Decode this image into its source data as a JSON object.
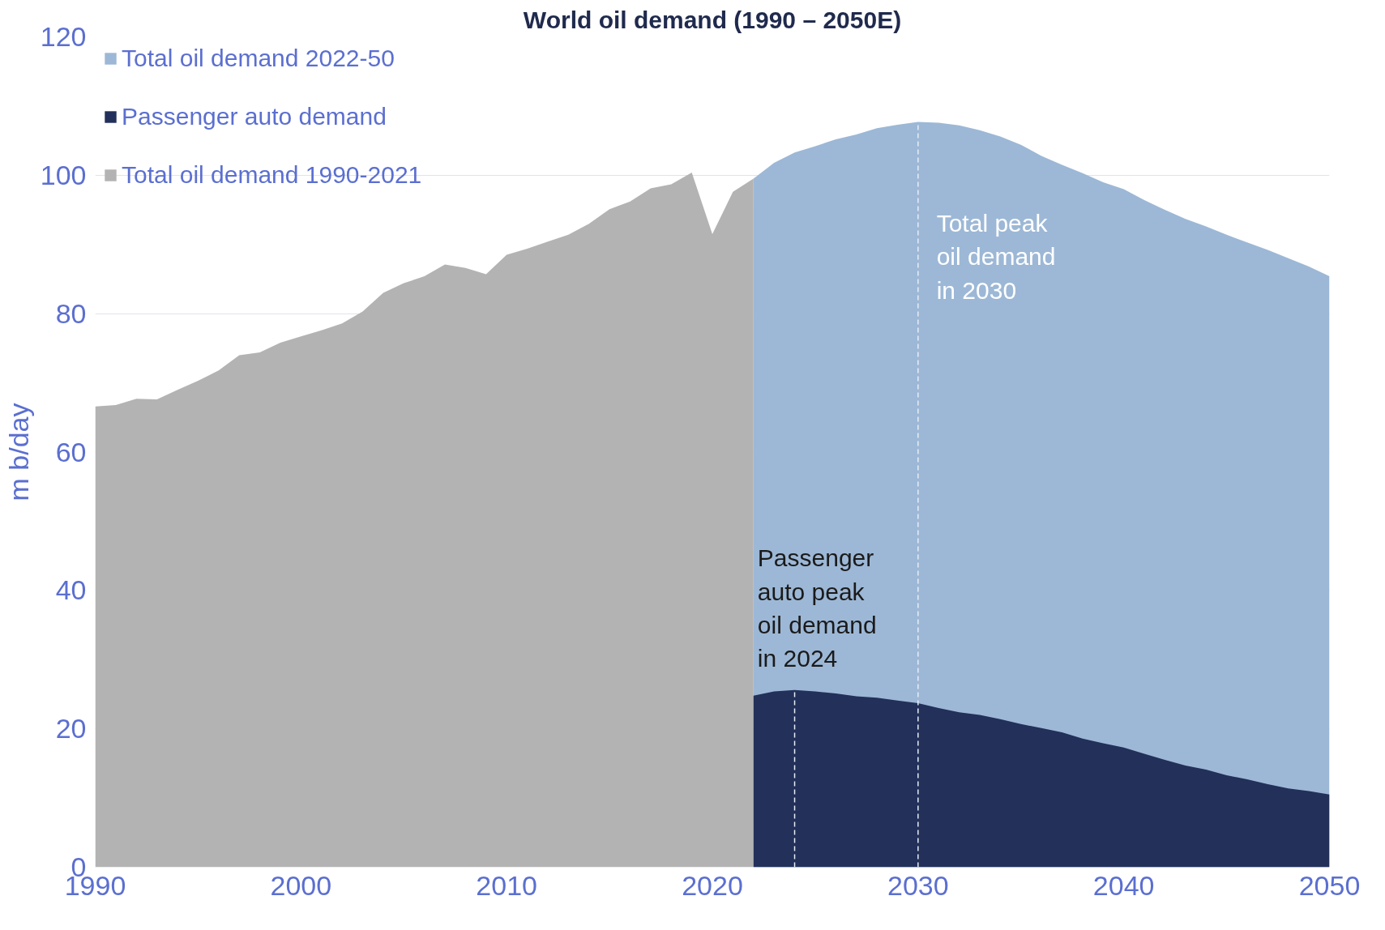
{
  "chart_data": {
    "type": "area",
    "title": "World oil demand (1990 – 2050E)",
    "ylabel": "m b/day",
    "xlim": [
      1990,
      2050
    ],
    "xticks": [
      1990,
      2000,
      2010,
      2020,
      2030,
      2040,
      2050
    ],
    "ylim": [
      0,
      120
    ],
    "yticks": [
      0,
      20,
      40,
      60,
      80,
      100,
      120
    ],
    "grid": "y",
    "legend": "top left",
    "series": [
      {
        "name": "Total oil demand 2022-50",
        "color": "#9db8d6",
        "x": [
          2022,
          2023,
          2024,
          2025,
          2026,
          2027,
          2028,
          2029,
          2030,
          2031,
          2032,
          2033,
          2034,
          2035,
          2036,
          2037,
          2038,
          2039,
          2040,
          2041,
          2042,
          2043,
          2044,
          2045,
          2046,
          2047,
          2048,
          2049,
          2050
        ],
        "values": [
          99.5,
          101.8,
          103.3,
          104.2,
          105.2,
          105.9,
          106.8,
          107.3,
          107.7,
          107.6,
          107.2,
          106.5,
          105.6,
          104.4,
          102.8,
          101.5,
          100.3,
          99.0,
          98.0,
          96.4,
          95.0,
          93.7,
          92.6,
          91.4,
          90.3,
          89.2,
          88.0,
          86.8,
          85.4
        ]
      },
      {
        "name": "Passenger auto demand",
        "color": "#22305a",
        "x": [
          2022,
          2023,
          2024,
          2025,
          2026,
          2027,
          2028,
          2029,
          2030,
          2031,
          2032,
          2033,
          2034,
          2035,
          2036,
          2037,
          2038,
          2039,
          2040,
          2041,
          2042,
          2043,
          2044,
          2045,
          2046,
          2047,
          2048,
          2049,
          2050
        ],
        "values": [
          24.8,
          25.4,
          25.6,
          25.4,
          25.1,
          24.7,
          24.5,
          24.1,
          23.7,
          23.0,
          22.4,
          22.0,
          21.4,
          20.7,
          20.1,
          19.5,
          18.6,
          17.9,
          17.3,
          16.4,
          15.5,
          14.7,
          14.1,
          13.3,
          12.7,
          12.0,
          11.4,
          11.0,
          10.5
        ]
      },
      {
        "name": "Total oil demand 1990-2021",
        "color": "#b3b3b3",
        "x": [
          1990,
          1991,
          1992,
          1993,
          1994,
          1995,
          1996,
          1997,
          1998,
          1999,
          2000,
          2001,
          2002,
          2003,
          2004,
          2005,
          2006,
          2007,
          2008,
          2009,
          2010,
          2011,
          2012,
          2013,
          2014,
          2015,
          2016,
          2017,
          2018,
          2019,
          2020,
          2021,
          2022
        ],
        "values": [
          66.6,
          66.8,
          67.7,
          67.6,
          69.0,
          70.3,
          71.8,
          74.0,
          74.4,
          75.8,
          76.7,
          77.6,
          78.6,
          80.3,
          83.0,
          84.4,
          85.4,
          87.1,
          86.6,
          85.7,
          88.5,
          89.4,
          90.4,
          91.4,
          93.0,
          95.1,
          96.2,
          98.1,
          98.7,
          100.4,
          91.5,
          97.6,
          99.5
        ]
      }
    ],
    "ref_lines": [
      {
        "axis": "x",
        "value": 2024,
        "color": "#e8edf5",
        "line_style": "dashed",
        "label": "Passenger\nauto peak\noil demand\nin 2024"
      },
      {
        "axis": "x",
        "value": 2030,
        "color": "#e8edf5",
        "line_style": "dashed",
        "label": "Total peak\noil demand\nin 2030"
      }
    ]
  }
}
